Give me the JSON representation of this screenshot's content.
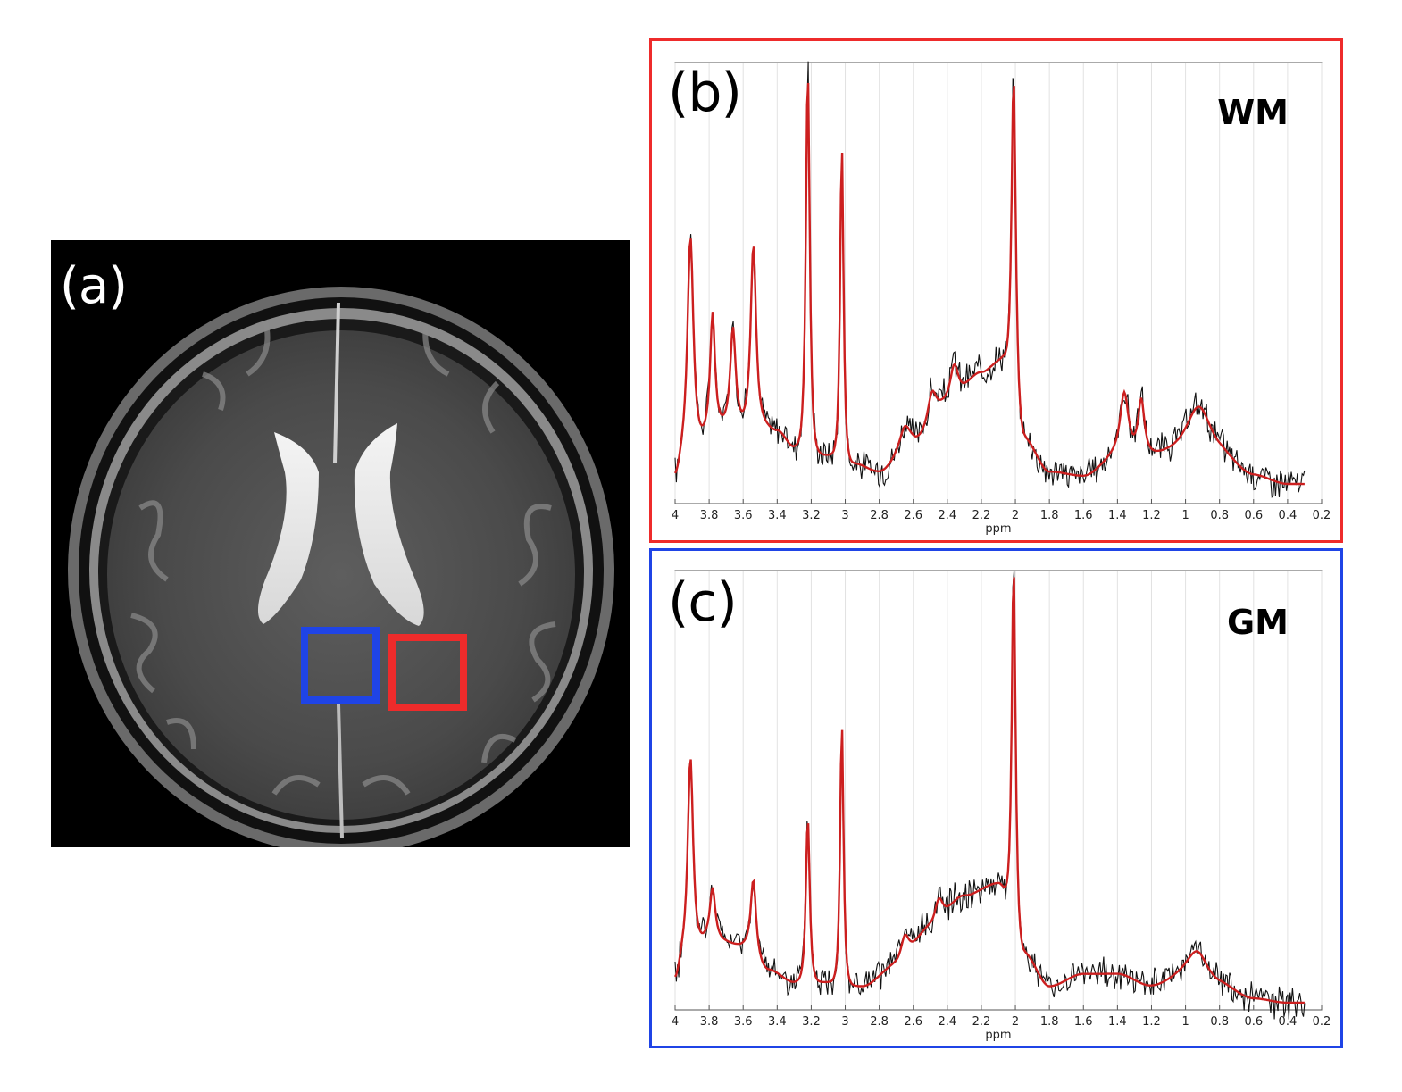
{
  "figure": {
    "panel_a": {
      "label": "(a)",
      "roi_colors": {
        "gm": "#1f44e6",
        "wm": "#ee2b2b"
      }
    },
    "panel_b": {
      "label": "(b)",
      "tissue": "WM",
      "frame_color": "#ee2b2b"
    },
    "panel_c": {
      "label": "(c)",
      "tissue": "GM",
      "frame_color": "#1f44e6"
    }
  },
  "chart_data": [
    {
      "type": "line",
      "panel": "b",
      "title": "",
      "xlabel": "ppm",
      "ylabel": "",
      "x_reversed": true,
      "xlim": [
        4.0,
        0.2
      ],
      "ylim": [
        0,
        1
      ],
      "grid": true,
      "xticks": [
        "4",
        "3.8",
        "3.6",
        "3.4",
        "3.2",
        "3",
        "2.8",
        "2.6",
        "2.4",
        "2.2",
        "2",
        "1.8",
        "1.6",
        "1.4",
        "1.2",
        "1",
        "0.8",
        "0.6",
        "0.4",
        "0.2"
      ],
      "peaks": [
        {
          "ppm": 3.91,
          "height": 0.52,
          "width": 0.028
        },
        {
          "ppm": 3.78,
          "height": 0.27,
          "width": 0.022
        },
        {
          "ppm": 3.66,
          "height": 0.23,
          "width": 0.025
        },
        {
          "ppm": 3.54,
          "height": 0.43,
          "width": 0.025
        },
        {
          "ppm": 3.22,
          "height": 0.92,
          "width": 0.018
        },
        {
          "ppm": 3.02,
          "height": 0.76,
          "width": 0.016
        },
        {
          "ppm": 2.65,
          "height": 0.05,
          "width": 0.05
        },
        {
          "ppm": 2.49,
          "height": 0.07,
          "width": 0.04
        },
        {
          "ppm": 2.36,
          "height": 0.09,
          "width": 0.04
        },
        {
          "ppm": 2.01,
          "height": 0.79,
          "width": 0.02
        },
        {
          "ppm": 1.36,
          "height": 0.15,
          "width": 0.04
        },
        {
          "ppm": 1.26,
          "height": 0.13,
          "width": 0.03
        },
        {
          "ppm": 0.92,
          "height": 0.12,
          "width": 0.12
        }
      ],
      "baseline": [
        [
          4.0,
          0.05
        ],
        [
          3.95,
          0.1
        ],
        [
          3.75,
          0.18
        ],
        [
          3.5,
          0.18
        ],
        [
          3.4,
          0.16
        ],
        [
          3.3,
          0.12
        ],
        [
          3.1,
          0.1
        ],
        [
          2.95,
          0.08
        ],
        [
          2.8,
          0.06
        ],
        [
          2.6,
          0.13
        ],
        [
          2.4,
          0.22
        ],
        [
          2.2,
          0.3
        ],
        [
          2.08,
          0.33
        ],
        [
          1.95,
          0.14
        ],
        [
          1.8,
          0.06
        ],
        [
          1.6,
          0.05
        ],
        [
          1.4,
          0.1
        ],
        [
          1.0,
          0.1
        ],
        [
          0.8,
          0.09
        ],
        [
          0.6,
          0.05
        ],
        [
          0.4,
          0.03
        ],
        [
          0.3,
          0.03
        ]
      ],
      "series": [
        {
          "color": "#cc1f1f",
          "kind": "fit"
        },
        {
          "color": "#111111",
          "kind": "measured"
        }
      ]
    },
    {
      "type": "line",
      "panel": "c",
      "title": "",
      "xlabel": "ppm",
      "ylabel": "",
      "x_reversed": true,
      "xlim": [
        4.0,
        0.2
      ],
      "ylim": [
        0,
        1
      ],
      "grid": true,
      "xticks": [
        "4",
        "3.8",
        "3.6",
        "3.4",
        "3.2",
        "3",
        "2.8",
        "2.6",
        "2.4",
        "2.2",
        "2",
        "1.8",
        "1.6",
        "1.4",
        "1.2",
        "1",
        "0.8",
        "0.6",
        "0.4",
        "0.2"
      ],
      "peaks": [
        {
          "ppm": 3.91,
          "height": 0.47,
          "width": 0.025
        },
        {
          "ppm": 3.78,
          "height": 0.12,
          "width": 0.025
        },
        {
          "ppm": 3.54,
          "height": 0.18,
          "width": 0.025
        },
        {
          "ppm": 3.22,
          "height": 0.4,
          "width": 0.018
        },
        {
          "ppm": 3.02,
          "height": 0.63,
          "width": 0.016
        },
        {
          "ppm": 2.65,
          "height": 0.06,
          "width": 0.04
        },
        {
          "ppm": 2.45,
          "height": 0.06,
          "width": 0.04
        },
        {
          "ppm": 2.01,
          "height": 0.88,
          "width": 0.018
        },
        {
          "ppm": 0.93,
          "height": 0.07,
          "width": 0.1
        }
      ],
      "baseline": [
        [
          4.0,
          0.06
        ],
        [
          3.95,
          0.12
        ],
        [
          3.8,
          0.16
        ],
        [
          3.6,
          0.14
        ],
        [
          3.45,
          0.08
        ],
        [
          3.3,
          0.05
        ],
        [
          3.1,
          0.05
        ],
        [
          2.9,
          0.04
        ],
        [
          2.7,
          0.09
        ],
        [
          2.5,
          0.18
        ],
        [
          2.3,
          0.26
        ],
        [
          2.1,
          0.29
        ],
        [
          1.95,
          0.12
        ],
        [
          1.8,
          0.04
        ],
        [
          1.6,
          0.07
        ],
        [
          1.4,
          0.07
        ],
        [
          1.2,
          0.04
        ],
        [
          1.0,
          0.06
        ],
        [
          0.8,
          0.04
        ],
        [
          0.6,
          0.01
        ],
        [
          0.4,
          0.0
        ],
        [
          0.3,
          0.0
        ]
      ],
      "series": [
        {
          "color": "#cc1f1f",
          "kind": "fit"
        },
        {
          "color": "#111111",
          "kind": "measured"
        }
      ]
    }
  ]
}
